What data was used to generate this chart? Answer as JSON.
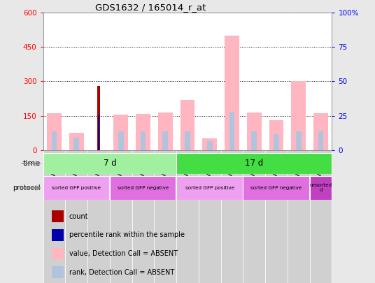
{
  "title": "GDS1632 / 165014_r_at",
  "samples": [
    "GSM43189",
    "GSM43203",
    "GSM43210",
    "GSM43186",
    "GSM43200",
    "GSM43207",
    "GSM43196",
    "GSM43217",
    "GSM43226",
    "GSM43193",
    "GSM43214",
    "GSM43223",
    "GSM43220"
  ],
  "value_absent": [
    160,
    75,
    0,
    155,
    158,
    163,
    220,
    50,
    500,
    165,
    130,
    300,
    160
  ],
  "rank_absent": [
    82,
    55,
    0,
    82,
    82,
    82,
    82,
    40,
    168,
    82,
    68,
    82,
    82
  ],
  "count": [
    0,
    0,
    280,
    0,
    0,
    0,
    0,
    0,
    0,
    0,
    0,
    0,
    0
  ],
  "percentile_rank": [
    0,
    0,
    152,
    0,
    0,
    0,
    0,
    0,
    0,
    0,
    0,
    0,
    0
  ],
  "time_ranges": [
    [
      0,
      6,
      "7 d",
      "#a0f0a0"
    ],
    [
      6,
      13,
      "17 d",
      "#44dd44"
    ]
  ],
  "proto_ranges": [
    [
      0,
      3,
      "sorted GFP positive",
      "#f0a0f0"
    ],
    [
      3,
      6,
      "sorted GFP negative",
      "#e070e0"
    ],
    [
      6,
      9,
      "sorted GFP positive",
      "#f0a0f0"
    ],
    [
      9,
      12,
      "sorted GFP negative",
      "#e070e0"
    ],
    [
      12,
      13,
      "unsorted\nd",
      "#c040c0"
    ]
  ],
  "ylim_left": [
    0,
    600
  ],
  "ylim_right": [
    0,
    100
  ],
  "yticks_left": [
    0,
    150,
    300,
    450,
    600
  ],
  "yticks_right": [
    0,
    25,
    50,
    75,
    100
  ],
  "color_value_absent": "#ffb6c1",
  "color_rank_absent": "#b0c4de",
  "color_count": "#aa0000",
  "color_percentile": "#0000aa",
  "background_color": "#e8e8e8",
  "plot_bg": "#ffffff",
  "label_time": "time",
  "label_protocol": "protocol",
  "legend_items": [
    [
      "#aa0000",
      "count"
    ],
    [
      "#0000aa",
      "percentile rank within the sample"
    ],
    [
      "#ffb6c1",
      "value, Detection Call = ABSENT"
    ],
    [
      "#b0c4de",
      "rank, Detection Call = ABSENT"
    ]
  ]
}
